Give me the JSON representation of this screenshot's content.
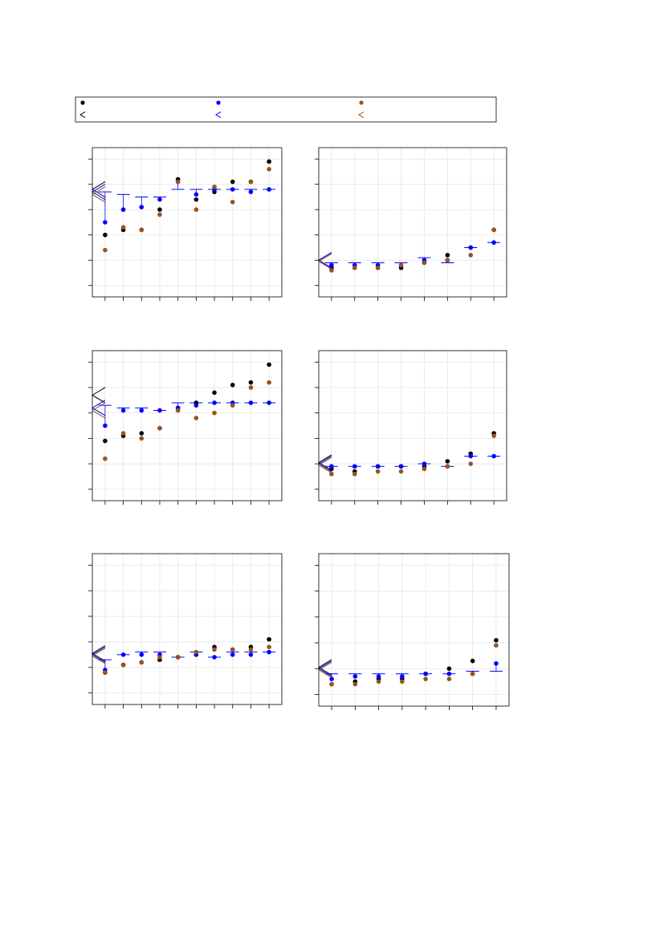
{
  "chart_data": [
    {
      "type": "scatter",
      "x": [
        1,
        2,
        3,
        4,
        5,
        6,
        7,
        8,
        9,
        10
      ],
      "xlim": [
        0.3,
        10.7
      ],
      "xticks": [
        1,
        2,
        3,
        4,
        5,
        6,
        7,
        8,
        9,
        10
      ],
      "ylim": [
        -0.45,
        5.45
      ],
      "yticks": [
        0,
        1,
        2,
        3,
        4,
        5
      ],
      "grid": true,
      "series": [
        {
          "color": "#000000",
          "marker": "dot",
          "values": [
            2.0,
            2.2,
            2.2,
            3.0,
            4.2,
            3.4,
            3.7,
            4.1,
            4.1,
            4.9
          ]
        },
        {
          "color": "#0000ff",
          "marker": "dot",
          "values": [
            2.5,
            3.0,
            3.1,
            3.4,
            4.1,
            3.6,
            3.8,
            3.8,
            3.7,
            3.8
          ]
        },
        {
          "color": "#99521e",
          "marker": "dot",
          "values": [
            1.4,
            2.3,
            2.2,
            2.8,
            4.1,
            3.0,
            3.9,
            3.3,
            4.1,
            4.6
          ]
        },
        {
          "color": "#0000ff",
          "marker": "dash",
          "error_to": 1,
          "values": [
            3.7,
            3.6,
            3.5,
            3.5,
            3.8,
            3.8,
            3.8,
            3.8,
            3.8,
            3.8
          ]
        }
      ],
      "left_markers": [
        {
          "color": "#000000",
          "value": 3.8
        },
        {
          "color": "#0000ff",
          "value": 3.7
        },
        {
          "color": "#99521e",
          "value": 3.6
        }
      ]
    },
    {
      "type": "scatter",
      "x": [
        1,
        2,
        3,
        4,
        5,
        6,
        7,
        8
      ],
      "xlim": [
        0.45,
        8.55
      ],
      "xticks": [
        1,
        2,
        3,
        4,
        5,
        6,
        7,
        8
      ],
      "ylim": [
        -0.45,
        5.45
      ],
      "yticks": [
        0,
        1,
        2,
        3,
        4,
        5
      ],
      "grid": true,
      "series": [
        {
          "color": "#000000",
          "marker": "dot",
          "values": [
            0.7,
            0.7,
            0.7,
            0.7,
            0.9,
            1.2,
            1.5,
            2.2
          ]
        },
        {
          "color": "#0000ff",
          "marker": "dot",
          "values": [
            0.8,
            0.8,
            0.8,
            0.8,
            1.0,
            1.0,
            1.5,
            1.7
          ]
        },
        {
          "color": "#99521e",
          "marker": "dot",
          "values": [
            0.6,
            0.7,
            0.7,
            0.8,
            0.9,
            1.0,
            1.2,
            2.2
          ]
        },
        {
          "color": "#0000ff",
          "marker": "dash",
          "error_to": 1,
          "values": [
            0.9,
            0.9,
            0.9,
            0.9,
            1.1,
            0.9,
            1.5,
            1.7
          ]
        }
      ],
      "left_markers": [
        {
          "color": "#000000",
          "value": 1.0
        },
        {
          "color": "#0000ff",
          "value": 1.0
        },
        {
          "color": "#99521e",
          "value": 0.95
        }
      ]
    },
    {
      "type": "scatter",
      "x": [
        1,
        2,
        3,
        4,
        5,
        6,
        7,
        8,
        9,
        10
      ],
      "xlim": [
        0.3,
        10.7
      ],
      "xticks": [
        1,
        2,
        3,
        4,
        5,
        6,
        7,
        8,
        9,
        10
      ],
      "ylim": [
        -0.45,
        5.45
      ],
      "yticks": [
        0,
        1,
        2,
        3,
        4,
        5
      ],
      "grid": true,
      "series": [
        {
          "color": "#000000",
          "marker": "dot",
          "values": [
            1.9,
            2.1,
            2.2,
            2.4,
            3.2,
            3.4,
            3.8,
            4.1,
            4.2,
            4.9
          ]
        },
        {
          "color": "#0000ff",
          "marker": "dot",
          "values": [
            2.5,
            3.1,
            3.1,
            3.1,
            3.2,
            3.3,
            3.4,
            3.4,
            3.4,
            3.4
          ]
        },
        {
          "color": "#99521e",
          "marker": "dot",
          "values": [
            1.2,
            2.2,
            2.0,
            2.4,
            3.1,
            2.8,
            3.0,
            3.3,
            4.0,
            4.2
          ]
        },
        {
          "color": "#0000ff",
          "marker": "dash",
          "error_to": 1,
          "values": [
            3.3,
            3.2,
            3.2,
            3.1,
            3.4,
            3.4,
            3.4,
            3.4,
            3.4,
            3.4
          ]
        }
      ],
      "left_markers": [
        {
          "color": "#000000",
          "value": 3.7
        },
        {
          "color": "#0000ff",
          "value": 3.2
        },
        {
          "color": "#99521e",
          "value": 3.1
        }
      ]
    },
    {
      "type": "scatter",
      "x": [
        1,
        2,
        3,
        4,
        5,
        6,
        7,
        8
      ],
      "xlim": [
        0.45,
        8.55
      ],
      "xticks": [
        1,
        2,
        3,
        4,
        5,
        6,
        7,
        8
      ],
      "ylim": [
        -0.45,
        5.45
      ],
      "yticks": [
        0,
        1,
        2,
        3,
        4,
        5
      ],
      "grid": true,
      "series": [
        {
          "color": "#000000",
          "marker": "dot",
          "values": [
            0.8,
            0.7,
            0.9,
            0.9,
            0.9,
            1.1,
            1.4,
            2.2
          ]
        },
        {
          "color": "#0000ff",
          "marker": "dot",
          "values": [
            0.9,
            0.9,
            0.9,
            0.9,
            1.0,
            0.9,
            1.3,
            1.3
          ]
        },
        {
          "color": "#99521e",
          "marker": "dot",
          "values": [
            0.6,
            0.6,
            0.7,
            0.7,
            0.8,
            0.9,
            1.0,
            2.1
          ]
        },
        {
          "color": "#0000ff",
          "marker": "dash",
          "error_to": 1,
          "values": [
            0.9,
            0.9,
            0.9,
            0.9,
            1.0,
            0.9,
            1.3,
            1.3
          ]
        }
      ],
      "left_markers": [
        {
          "color": "#000000",
          "value": 1.05
        },
        {
          "color": "#0000ff",
          "value": 1.0
        },
        {
          "color": "#99521e",
          "value": 0.95
        }
      ]
    },
    {
      "type": "scatter",
      "x": [
        1,
        2,
        3,
        4,
        5,
        6,
        7,
        8,
        9,
        10
      ],
      "xlim": [
        0.3,
        10.7
      ],
      "xticks": [
        1,
        2,
        3,
        4,
        5,
        6,
        7,
        8,
        9,
        10
      ],
      "ylim": [
        -0.45,
        5.45
      ],
      "yticks": [
        0,
        1,
        2,
        3,
        4,
        5
      ],
      "grid": true,
      "series": [
        {
          "color": "#000000",
          "marker": "dot",
          "values": [
            0.8,
            1.1,
            1.2,
            1.3,
            1.4,
            1.5,
            1.8,
            1.7,
            1.8,
            2.1
          ]
        },
        {
          "color": "#0000ff",
          "marker": "dot",
          "values": [
            0.9,
            1.5,
            1.5,
            1.5,
            1.4,
            1.5,
            1.4,
            1.5,
            1.5,
            1.6
          ]
        },
        {
          "color": "#99521e",
          "marker": "dot",
          "values": [
            0.8,
            1.1,
            1.2,
            1.4,
            1.4,
            1.6,
            1.7,
            1.7,
            1.7,
            1.8
          ]
        },
        {
          "color": "#0000ff",
          "marker": "dash",
          "error_to": 1,
          "values": [
            1.3,
            1.5,
            1.6,
            1.6,
            1.4,
            1.6,
            1.4,
            1.6,
            1.6,
            1.6
          ]
        }
      ],
      "left_markers": [
        {
          "color": "#000000",
          "value": 1.55
        },
        {
          "color": "#0000ff",
          "value": 1.5
        },
        {
          "color": "#99521e",
          "value": 1.45
        }
      ]
    },
    {
      "type": "scatter",
      "x": [
        1,
        2,
        3,
        4,
        5,
        6,
        7,
        8
      ],
      "xlim": [
        0.45,
        8.55
      ],
      "xticks": [
        1,
        2,
        3,
        4,
        5,
        6,
        7,
        8
      ],
      "ylim": [
        -0.45,
        5.45
      ],
      "yticks": [
        0,
        1,
        2,
        3,
        4,
        5
      ],
      "grid": true,
      "series": [
        {
          "color": "#000000",
          "marker": "dot",
          "values": [
            0.4,
            0.5,
            0.6,
            0.6,
            0.8,
            1.0,
            1.3,
            2.1
          ]
        },
        {
          "color": "#0000ff",
          "marker": "dot",
          "values": [
            0.6,
            0.7,
            0.7,
            0.7,
            0.8,
            0.8,
            0.8,
            1.2
          ]
        },
        {
          "color": "#99521e",
          "marker": "dot",
          "values": [
            0.4,
            0.4,
            0.5,
            0.5,
            0.6,
            0.6,
            0.8,
            1.9
          ]
        },
        {
          "color": "#0000ff",
          "marker": "dash",
          "error_to": 1,
          "values": [
            0.8,
            0.8,
            0.8,
            0.8,
            0.8,
            0.8,
            0.9,
            0.9
          ]
        }
      ],
      "left_markers": [
        {
          "color": "#000000",
          "value": 1.05
        },
        {
          "color": "#0000ff",
          "value": 1.0
        },
        {
          "color": "#99521e",
          "value": 0.95
        }
      ]
    }
  ]
}
